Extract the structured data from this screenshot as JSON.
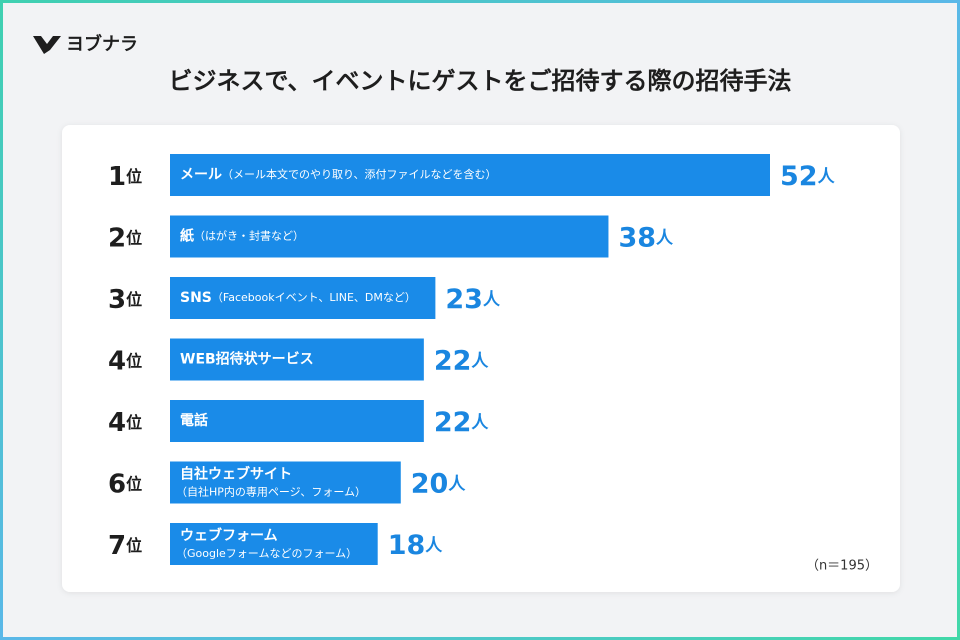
{
  "brand": "ヨブナラ",
  "chart_data": {
    "type": "bar",
    "orientation": "horizontal",
    "title": "ビジネスで、イベントにゲストをご招待する際の招待手法",
    "ranks": [
      "1",
      "2",
      "3",
      "4",
      "4",
      "6",
      "7"
    ],
    "rank_suffix": "位",
    "categories": [
      "メール",
      "紙",
      "SNS",
      "WEB招待状サービス",
      "電話",
      "自社ウェブサイト",
      "ウェブフォーム"
    ],
    "category_notes": [
      "（メール本文でのやり取り、添付ファイルなどを含む）",
      "（はがき・封書など）",
      "（Facebookイベント、LINE、DMなど）",
      null,
      null,
      "（自社HP内の専用ページ、フォーム）",
      "（Googleフォームなどのフォーム）"
    ],
    "values": [
      52,
      38,
      23,
      22,
      22,
      20,
      18
    ],
    "unit": "人",
    "color": "#1a8be8",
    "label_color": "#1a86e0",
    "note": "（n＝195）"
  }
}
